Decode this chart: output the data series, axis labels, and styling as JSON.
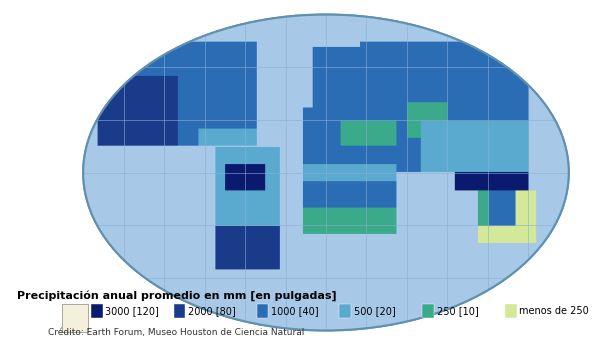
{
  "title": "Precipitación anual promedio en mm [en pulgadas]",
  "credit": "Crédito: Earth Forum, Museo Houston de Ciencia Natural",
  "legend_items": [
    {
      "label": "3000 [120]",
      "color": "#0a1a6e"
    },
    {
      "label": "2000 [80]",
      "color": "#1a3a8a"
    },
    {
      "label": "1000 [40]",
      "color": "#2a6db5"
    },
    {
      "label": "500 [20]",
      "color": "#5aaad0"
    },
    {
      "label": "250 [10]",
      "color": "#3aaa8a"
    },
    {
      "label": "menos de 250",
      "color": "#d4e89a"
    }
  ],
  "ocean_color": "#a8c8e8",
  "grid_color": "#8ab0d0",
  "background_color": "#ffffff",
  "fig_width": 6.0,
  "fig_height": 3.45,
  "dpi": 100,
  "title_fontsize": 8,
  "legend_fontsize": 7,
  "credit_fontsize": 6.5
}
